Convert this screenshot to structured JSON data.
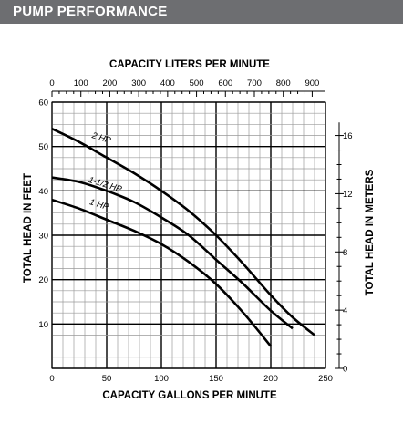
{
  "header": {
    "title": "PUMP PERFORMANCE"
  },
  "chart_data": {
    "type": "line",
    "title": "",
    "xlabel": "CAPACITY GALLONS PER MINUTE",
    "x2label": "CAPACITY LITERS PER MINUTE",
    "ylabel": "TOTAL HEAD IN FEET",
    "y2label": "TOTAL HEAD IN METERS",
    "xlim": [
      0,
      250
    ],
    "ylim": [
      0,
      60
    ],
    "x2lim": [
      0,
      946
    ],
    "y2lim": [
      0,
      18.29
    ],
    "grid": true,
    "x_ticks": [
      "0",
      "50",
      "100",
      "150",
      "200",
      "250"
    ],
    "x_tick_values": [
      0,
      50,
      100,
      150,
      200,
      250
    ],
    "y_ticks": [
      "10",
      "20",
      "30",
      "40",
      "50",
      "60"
    ],
    "y_tick_values": [
      10,
      20,
      30,
      40,
      50,
      60
    ],
    "x2_ticks": [
      "0",
      "100",
      "200",
      "300",
      "400",
      "500",
      "600",
      "700",
      "800",
      "900"
    ],
    "x2_tick_values": [
      0,
      100,
      200,
      300,
      400,
      500,
      600,
      700,
      800,
      900
    ],
    "y2_ticks": [
      "0",
      "4",
      "8",
      "12",
      "16"
    ],
    "y2_tick_values": [
      0,
      4,
      8,
      12,
      16
    ],
    "series": [
      {
        "name": "2 HP",
        "x": [
          0,
          25,
          50,
          75,
          100,
          125,
          150,
          175,
          200,
          220,
          240
        ],
        "y": [
          54,
          51,
          47.5,
          44,
          40,
          35.5,
          30,
          23.5,
          16.5,
          11.5,
          7.5
        ],
        "label_x": 36,
        "label_y": 52
      },
      {
        "name": "1-1/2 HP",
        "x": [
          0,
          25,
          50,
          75,
          100,
          125,
          150,
          175,
          200,
          220
        ],
        "y": [
          43,
          42,
          40,
          37.5,
          34,
          30,
          24.5,
          19,
          13,
          9
        ],
        "label_x": 33,
        "label_y": 42
      },
      {
        "name": "1 HP",
        "x": [
          0,
          25,
          50,
          75,
          100,
          125,
          150,
          175,
          200
        ],
        "y": [
          38,
          36,
          33.5,
          31,
          28,
          24,
          19,
          12.5,
          5
        ],
        "label_x": 34,
        "label_y": 37
      }
    ]
  }
}
